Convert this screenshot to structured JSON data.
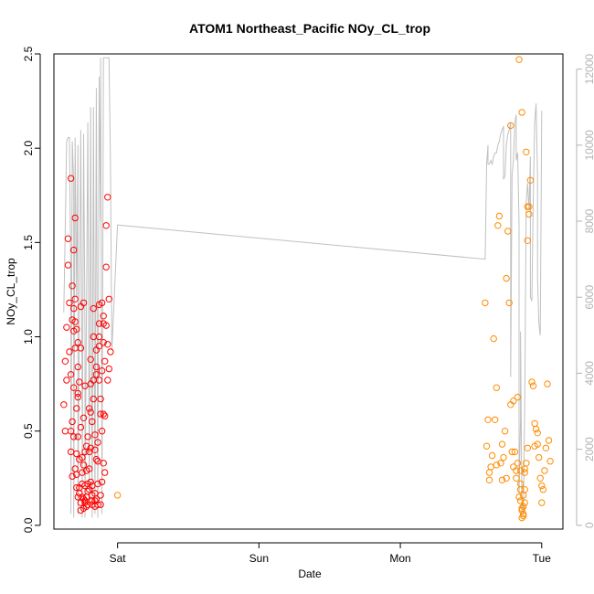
{
  "chart_data": {
    "type": "scatter",
    "title": "ATOM1 Northeast_Pacific NOy_CL_trop",
    "xlabel": "Date",
    "ylabel": "NOy_CL_trop",
    "x_ticks": [
      "Sat",
      "Sun",
      "Mon",
      "Tue"
    ],
    "x_range_days": [
      -0.45,
      3.15
    ],
    "ylim": [
      -0.02,
      2.5
    ],
    "y_ticks": [
      0.0,
      0.5,
      1.0,
      1.5,
      2.0,
      2.5
    ],
    "y2lim": [
      -100,
      12400
    ],
    "y2_ticks": [
      0,
      2000,
      4000,
      6000,
      8000,
      10000,
      12000
    ],
    "y2_label": "",
    "grid": false,
    "series": [
      {
        "color": "#ff0000",
        "marker": "open-circle",
        "points": [
          [
            -0.38,
            0.64
          ],
          [
            -0.37,
            0.87
          ],
          [
            -0.37,
            0.5
          ],
          [
            -0.36,
            1.05
          ],
          [
            -0.36,
            0.77
          ],
          [
            -0.35,
            1.52
          ],
          [
            -0.35,
            1.38
          ],
          [
            -0.34,
            1.18
          ],
          [
            -0.34,
            0.92
          ],
          [
            -0.33,
            1.84
          ],
          [
            -0.33,
            0.8
          ],
          [
            -0.33,
            0.5
          ],
          [
            -0.33,
            0.39
          ],
          [
            -0.32,
            1.09
          ],
          [
            -0.32,
            1.27
          ],
          [
            -0.32,
            0.26
          ],
          [
            -0.32,
            0.55
          ],
          [
            -0.31,
            1.15
          ],
          [
            -0.31,
            1.46
          ],
          [
            -0.31,
            1.03
          ],
          [
            -0.31,
            0.73
          ],
          [
            -0.31,
            0.47
          ],
          [
            -0.3,
            1.63
          ],
          [
            -0.3,
            1.2
          ],
          [
            -0.3,
            0.94
          ],
          [
            -0.3,
            0.3
          ],
          [
            -0.3,
            1.08
          ],
          [
            -0.29,
            0.62
          ],
          [
            -0.29,
            0.27
          ],
          [
            -0.29,
            0.2
          ],
          [
            -0.29,
            1.04
          ],
          [
            -0.29,
            0.38
          ],
          [
            -0.28,
            0.97
          ],
          [
            -0.28,
            0.84
          ],
          [
            -0.28,
            0.47
          ],
          [
            -0.28,
            0.68
          ],
          [
            -0.28,
            0.7
          ],
          [
            -0.28,
            0.15
          ],
          [
            -0.27,
            0.76
          ],
          [
            -0.27,
            0.35
          ],
          [
            -0.27,
            0.17
          ],
          [
            -0.27,
            0.2
          ],
          [
            -0.26,
            1.16
          ],
          [
            -0.26,
            0.94
          ],
          [
            -0.26,
            0.52
          ],
          [
            -0.26,
            0.12
          ],
          [
            -0.26,
            0.08
          ],
          [
            -0.25,
            0.36
          ],
          [
            -0.25,
            0.22
          ],
          [
            -0.25,
            0.15
          ],
          [
            -0.25,
            0.28
          ],
          [
            -0.24,
            1.18
          ],
          [
            -0.24,
            0.57
          ],
          [
            -0.24,
            0.14
          ],
          [
            -0.24,
            0.09
          ],
          [
            -0.24,
            0.32
          ],
          [
            -0.23,
            0.74
          ],
          [
            -0.23,
            0.39
          ],
          [
            -0.23,
            0.21
          ],
          [
            -0.23,
            0.13
          ],
          [
            -0.23,
            0.12
          ],
          [
            -0.22,
            0.1
          ],
          [
            -0.22,
            0.15
          ],
          [
            -0.22,
            0.29
          ],
          [
            -0.22,
            0.42
          ],
          [
            -0.21,
            0.47
          ],
          [
            -0.21,
            0.22
          ],
          [
            -0.21,
            0.18
          ],
          [
            -0.21,
            0.11
          ],
          [
            -0.2,
            0.19
          ],
          [
            -0.2,
            0.3
          ],
          [
            -0.2,
            0.39
          ],
          [
            -0.2,
            0.62
          ],
          [
            -0.19,
            0.75
          ],
          [
            -0.19,
            0.88
          ],
          [
            -0.19,
            0.6
          ],
          [
            -0.19,
            0.41
          ],
          [
            -0.19,
            0.23
          ],
          [
            -0.18,
            0.16
          ],
          [
            -0.18,
            0.11
          ],
          [
            -0.18,
            0.13
          ],
          [
            -0.18,
            0.21
          ],
          [
            -0.18,
            0.55
          ],
          [
            -0.17,
            0.77
          ],
          [
            -0.17,
            1.0
          ],
          [
            -0.17,
            1.15
          ],
          [
            -0.17,
            0.67
          ],
          [
            -0.16,
            0.48
          ],
          [
            -0.16,
            0.4
          ],
          [
            -0.16,
            0.13
          ],
          [
            -0.16,
            0.1
          ],
          [
            -0.16,
            0.17
          ],
          [
            -0.15,
            0.84
          ],
          [
            -0.15,
            0.93
          ],
          [
            -0.15,
            0.8
          ],
          [
            -0.15,
            0.35
          ],
          [
            -0.15,
            0.14
          ],
          [
            -0.14,
            0.11
          ],
          [
            -0.14,
            0.22
          ],
          [
            -0.14,
            0.34
          ],
          [
            -0.14,
            0.44
          ],
          [
            -0.13,
            1.07
          ],
          [
            -0.13,
            1.17
          ],
          [
            -0.13,
            1.0
          ],
          [
            -0.13,
            0.95
          ],
          [
            -0.13,
            0.77
          ],
          [
            -0.12,
            0.67
          ],
          [
            -0.12,
            0.59
          ],
          [
            -0.12,
            0.16
          ],
          [
            -0.12,
            0.11
          ],
          [
            -0.11,
            0.23
          ],
          [
            -0.11,
            0.5
          ],
          [
            -0.11,
            0.82
          ],
          [
            -0.11,
            1.18
          ],
          [
            -0.1,
            1.11
          ],
          [
            -0.1,
            1.07
          ],
          [
            -0.1,
            0.97
          ],
          [
            -0.1,
            0.59
          ],
          [
            -0.1,
            0.33
          ],
          [
            -0.09,
            0.28
          ],
          [
            -0.09,
            0.58
          ],
          [
            -0.09,
            0.87
          ],
          [
            -0.08,
            1.59
          ],
          [
            -0.08,
            1.37
          ],
          [
            -0.08,
            1.06
          ],
          [
            -0.07,
            1.74
          ],
          [
            -0.07,
            0.96
          ],
          [
            -0.07,
            0.77
          ],
          [
            -0.06,
            1.2
          ],
          [
            -0.06,
            0.83
          ],
          [
            -0.05,
            0.92
          ]
        ]
      },
      {
        "color": "#ff8c00",
        "marker": "open-circle",
        "points": [
          [
            0.0,
            0.16
          ],
          [
            2.6,
            1.18
          ],
          [
            2.61,
            0.42
          ],
          [
            2.62,
            0.56
          ],
          [
            2.63,
            0.28
          ],
          [
            2.63,
            0.24
          ],
          [
            2.64,
            0.31
          ],
          [
            2.65,
            0.37
          ],
          [
            2.66,
            0.99
          ],
          [
            2.67,
            0.56
          ],
          [
            2.68,
            0.32
          ],
          [
            2.68,
            0.73
          ],
          [
            2.69,
            1.59
          ],
          [
            2.7,
            1.64
          ],
          [
            2.71,
            0.33
          ],
          [
            2.72,
            0.43
          ],
          [
            2.72,
            0.24
          ],
          [
            2.73,
            0.36
          ],
          [
            2.74,
            0.5
          ],
          [
            2.75,
            1.31
          ],
          [
            2.75,
            0.25
          ],
          [
            2.76,
            1.56
          ],
          [
            2.77,
            1.18
          ],
          [
            2.78,
            2.12
          ],
          [
            2.78,
            0.64
          ],
          [
            2.79,
            0.39
          ],
          [
            2.8,
            0.31
          ],
          [
            2.8,
            0.66
          ],
          [
            2.81,
            0.39
          ],
          [
            2.82,
            0.29
          ],
          [
            2.82,
            0.25
          ],
          [
            2.83,
            0.33
          ],
          [
            2.83,
            0.68
          ],
          [
            2.84,
            2.47
          ],
          [
            2.84,
            0.15
          ],
          [
            2.85,
            0.19
          ],
          [
            2.85,
            0.22
          ],
          [
            2.85,
            0.29
          ],
          [
            2.85,
            0.13
          ],
          [
            2.86,
            2.19
          ],
          [
            2.86,
            0.08
          ],
          [
            2.86,
            0.09
          ],
          [
            2.86,
            0.04
          ],
          [
            2.87,
            0.05
          ],
          [
            2.87,
            0.16
          ],
          [
            2.87,
            0.1
          ],
          [
            2.87,
            0.06
          ],
          [
            2.88,
            0.28
          ],
          [
            2.88,
            0.12
          ],
          [
            2.88,
            0.19
          ],
          [
            2.88,
            0.3
          ],
          [
            2.89,
            1.98
          ],
          [
            2.89,
            0.33
          ],
          [
            2.9,
            1.69
          ],
          [
            2.9,
            1.51
          ],
          [
            2.9,
            0.41
          ],
          [
            2.91,
            1.65
          ],
          [
            2.91,
            1.69
          ],
          [
            2.92,
            1.83
          ],
          [
            2.93,
            0.76
          ],
          [
            2.94,
            0.74
          ],
          [
            2.95,
            0.54
          ],
          [
            2.95,
            0.42
          ],
          [
            2.96,
            0.51
          ],
          [
            2.97,
            0.49
          ],
          [
            2.97,
            0.43
          ],
          [
            2.98,
            0.36
          ],
          [
            2.99,
            0.25
          ],
          [
            3.0,
            0.12
          ],
          [
            3.0,
            0.21
          ],
          [
            3.01,
            0.19
          ],
          [
            3.02,
            0.29
          ],
          [
            3.03,
            0.41
          ],
          [
            3.04,
            0.75
          ],
          [
            3.05,
            0.45
          ],
          [
            3.06,
            0.34
          ]
        ]
      }
    ],
    "line_series": {
      "color": "#c0c0c0",
      "axis": "right",
      "points": [
        [
          -0.38,
          5600
        ],
        [
          -0.37,
          7800
        ],
        [
          -0.36,
          10100
        ],
        [
          -0.35,
          10200
        ],
        [
          -0.34,
          10200
        ],
        [
          -0.33,
          6200
        ],
        [
          -0.33,
          300
        ],
        [
          -0.32,
          10100
        ],
        [
          -0.31,
          9000
        ],
        [
          -0.31,
          200
        ],
        [
          -0.3,
          10200
        ],
        [
          -0.29,
          6000
        ],
        [
          -0.28,
          10000
        ],
        [
          -0.28,
          300
        ],
        [
          -0.26,
          10400
        ],
        [
          -0.25,
          3000
        ],
        [
          -0.25,
          200
        ],
        [
          -0.24,
          10300
        ],
        [
          -0.23,
          5000
        ],
        [
          -0.23,
          200
        ],
        [
          -0.21,
          10600
        ],
        [
          -0.2,
          600
        ],
        [
          -0.19,
          11000
        ],
        [
          -0.18,
          200
        ],
        [
          -0.17,
          11000
        ],
        [
          -0.16,
          300
        ],
        [
          -0.15,
          11500
        ],
        [
          -0.14,
          200
        ],
        [
          -0.13,
          11800
        ],
        [
          -0.12,
          8000
        ],
        [
          -0.12,
          12300
        ],
        [
          -0.11,
          300
        ],
        [
          -0.1,
          12300
        ],
        [
          -0.09,
          12300
        ],
        [
          -0.08,
          12300
        ],
        [
          -0.07,
          12300
        ],
        [
          -0.06,
          12300
        ],
        [
          -0.06,
          12300
        ],
        [
          -0.05,
          9500
        ],
        [
          -0.04,
          4600
        ],
        [
          0.0,
          7900
        ],
        [
          2.6,
          7000
        ],
        [
          2.61,
          9500
        ],
        [
          2.62,
          10000
        ],
        [
          2.62,
          9500
        ],
        [
          2.63,
          9500
        ],
        [
          2.64,
          9600
        ],
        [
          2.65,
          9500
        ],
        [
          2.66,
          9700
        ],
        [
          2.67,
          9800
        ],
        [
          2.68,
          9800
        ],
        [
          2.69,
          10000
        ],
        [
          2.7,
          10100
        ],
        [
          2.71,
          10300
        ],
        [
          2.72,
          10400
        ],
        [
          2.73,
          10500
        ],
        [
          2.73,
          9100
        ],
        [
          2.74,
          9200
        ],
        [
          2.75,
          10000
        ],
        [
          2.76,
          10300
        ],
        [
          2.77,
          10400
        ],
        [
          2.78,
          10600
        ],
        [
          2.78,
          3900
        ],
        [
          2.79,
          9200
        ],
        [
          2.8,
          9600
        ],
        [
          2.81,
          10600
        ],
        [
          2.82,
          10800
        ],
        [
          2.82,
          9600
        ],
        [
          2.83,
          9800
        ],
        [
          2.84,
          7900
        ],
        [
          2.84,
          800
        ],
        [
          2.85,
          2800
        ],
        [
          2.85,
          5100
        ],
        [
          2.86,
          400
        ],
        [
          2.87,
          300
        ],
        [
          2.88,
          3200
        ],
        [
          2.89,
          8500
        ],
        [
          2.9,
          9000
        ],
        [
          2.91,
          8300
        ],
        [
          2.92,
          9700
        ],
        [
          2.92,
          6000
        ],
        [
          2.93,
          5900
        ],
        [
          2.94,
          8500
        ],
        [
          2.95,
          10600
        ],
        [
          2.96,
          11100
        ],
        [
          2.97,
          9200
        ],
        [
          2.97,
          6500
        ],
        [
          2.98,
          5300
        ],
        [
          2.99,
          5000
        ],
        [
          3.0,
          10900
        ]
      ]
    }
  }
}
